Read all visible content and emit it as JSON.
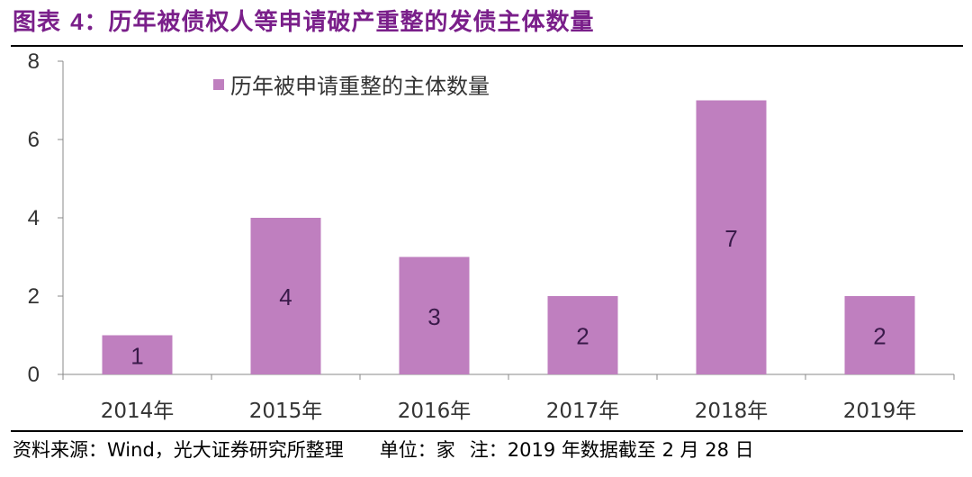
{
  "header": {
    "title_prefix": "图表",
    "title_number": "4",
    "title_text": "：历年被债权人等申请破产重整的发债主体数量"
  },
  "footer": {
    "source": "资料来源：Wind，光大证券研究所整理",
    "unit": "单位：家",
    "note": "注：2019 年数据截至 2 月 28 日"
  },
  "colors": {
    "bar": "#bf7fbf",
    "data_label": "#3a1a4a",
    "title": "#7a1f8a"
  },
  "chart_data": {
    "type": "bar",
    "title": "",
    "xlabel": "",
    "ylabel": "",
    "categories": [
      "2014年",
      "2015年",
      "2016年",
      "2017年",
      "2018年",
      "2019年"
    ],
    "series": [
      {
        "name": "历年被申请重整的主体数量",
        "values": [
          1,
          4,
          3,
          2,
          7,
          2
        ]
      }
    ],
    "ylim": [
      0,
      8
    ],
    "yticks": [
      0,
      2,
      4,
      6,
      8
    ],
    "grid": false,
    "legend_position": "top-left"
  }
}
